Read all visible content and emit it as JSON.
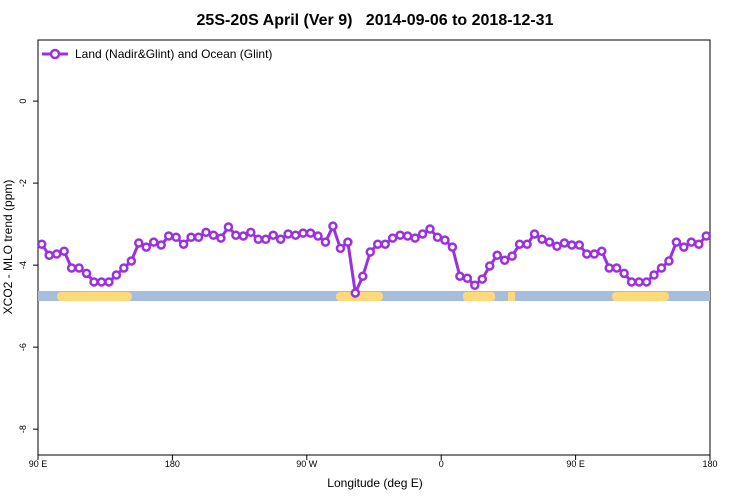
{
  "chart_data": {
    "type": "line",
    "title": "25S-20S April (Ver 9)   2014-09-06 to 2018-12-31",
    "xlabel": "Longitude (deg E)",
    "ylabel": "XCO2 - MLO trend (ppm)",
    "xlim": [
      90,
      540
    ],
    "ylim": [
      -8.63,
      1.49
    ],
    "xticks": [
      {
        "value": 90,
        "label": "90 E"
      },
      {
        "value": 180,
        "label": "180"
      },
      {
        "value": 270,
        "label": "90 W"
      },
      {
        "value": 360,
        "label": "0"
      },
      {
        "value": 450,
        "label": "90 E"
      },
      {
        "value": 540,
        "label": "180"
      }
    ],
    "yticks": [
      0,
      -2,
      -4,
      -6,
      -8
    ],
    "legend": "top-left",
    "x": [
      92.5,
      97.5,
      102.5,
      107.5,
      112.5,
      117.5,
      122.5,
      127.5,
      132.5,
      137.5,
      142.5,
      147.5,
      152.5,
      157.5,
      162.5,
      167.5,
      172.5,
      177.5,
      182.5,
      187.5,
      192.5,
      197.5,
      202.5,
      207.5,
      212.5,
      217.5,
      222.5,
      227.5,
      232.5,
      237.5,
      242.5,
      247.5,
      252.5,
      257.5,
      262.5,
      267.5,
      272.5,
      277.5,
      282.5,
      287.5,
      292.5,
      297.5,
      302.5,
      307.5,
      312.5,
      317.5,
      322.5,
      327.5,
      332.5,
      337.5,
      342.5,
      347.5,
      352.5,
      357.5,
      362.5,
      367.5,
      372.5,
      377.5,
      382.5,
      387.5,
      392.5,
      397.5,
      402.5,
      407.5,
      412.5,
      417.5,
      422.5,
      427.5,
      432.5,
      437.5,
      442.5,
      447.5,
      452.5,
      457.5,
      462.5,
      467.5,
      472.5,
      477.5,
      482.5,
      487.5,
      492.5,
      497.5,
      502.5,
      507.5,
      512.5,
      517.5,
      522.5,
      527.5,
      532.5,
      537.5
    ],
    "series": [
      {
        "name": "Land (Nadir&Glint) and Ocean (Glint)",
        "color": "#9b30e0",
        "values": [
          -3.49,
          -3.76,
          -3.73,
          -3.66,
          -4.07,
          -4.07,
          -4.2,
          -4.41,
          -4.41,
          -4.41,
          -4.24,
          -4.07,
          -3.9,
          -3.46,
          -3.56,
          -3.44,
          -3.51,
          -3.29,
          -3.32,
          -3.49,
          -3.32,
          -3.32,
          -3.2,
          -3.27,
          -3.34,
          -3.07,
          -3.27,
          -3.29,
          -3.2,
          -3.37,
          -3.37,
          -3.27,
          -3.37,
          -3.24,
          -3.27,
          -3.22,
          -3.22,
          -3.29,
          -3.44,
          -3.05,
          -3.59,
          -3.44,
          -4.68,
          -4.27,
          -3.68,
          -3.49,
          -3.49,
          -3.34,
          -3.27,
          -3.29,
          -3.34,
          -3.24,
          -3.12,
          -3.32,
          -3.39,
          -3.56,
          -4.27,
          -4.32,
          -4.49,
          -4.34,
          -4.02,
          -3.76,
          -3.88,
          -3.78,
          -3.49,
          -3.49,
          -3.24,
          -3.37,
          -3.44,
          -3.54,
          -3.46,
          -3.51,
          -3.51,
          -3.73,
          -3.73,
          -3.66,
          -4.07,
          -4.07,
          -4.2,
          -4.41,
          -4.41,
          -4.41,
          -4.24,
          -4.07,
          -3.9,
          -3.44,
          -3.56,
          -3.44,
          -3.49,
          -3.29
        ]
      }
    ]
  }
}
